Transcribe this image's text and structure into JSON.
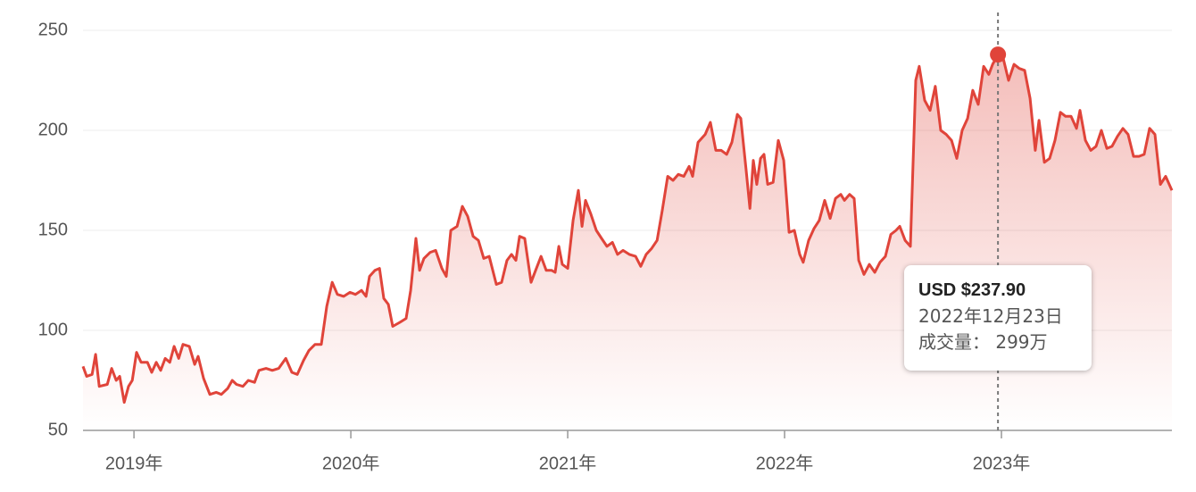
{
  "chart_data": {
    "type": "line",
    "color": "#e0443a",
    "grid": true,
    "x": [
      2018.765,
      2018.782,
      2018.807,
      2018.823,
      2018.84,
      2018.877,
      2018.897,
      2018.918,
      2018.934,
      2018.955,
      2018.975,
      2018.992,
      2019.012,
      2019.033,
      2019.062,
      2019.082,
      2019.103,
      2019.123,
      2019.144,
      2019.165,
      2019.185,
      2019.206,
      2019.226,
      2019.255,
      2019.28,
      2019.296,
      2019.321,
      2019.35,
      2019.379,
      2019.403,
      2019.432,
      2019.453,
      2019.473,
      2019.502,
      2019.527,
      2019.556,
      2019.576,
      2019.609,
      2019.638,
      2019.667,
      2019.7,
      2019.728,
      2019.753,
      2019.782,
      2019.807,
      2019.835,
      2019.864,
      2019.889,
      2019.914,
      2019.938,
      2019.967,
      2019.996,
      2020.021,
      2020.049,
      2020.07,
      2020.086,
      2020.111,
      2020.132,
      2020.152,
      2020.173,
      2020.193,
      2020.226,
      2020.255,
      2020.276,
      2020.3,
      2020.317,
      2020.337,
      2020.366,
      2020.391,
      2020.42,
      2020.44,
      2020.461,
      2020.49,
      2020.514,
      2020.539,
      2020.564,
      2020.588,
      2020.613,
      2020.638,
      2020.671,
      2020.695,
      2020.72,
      2020.741,
      2020.761,
      2020.778,
      2020.802,
      2020.831,
      2020.852,
      2020.877,
      2020.901,
      2020.926,
      2020.942,
      2020.959,
      2020.975,
      2021,
      2021.025,
      2021.049,
      2021.066,
      2021.082,
      2021.107,
      2021.132,
      2021.156,
      2021.181,
      2021.206,
      2021.23,
      2021.255,
      2021.284,
      2021.313,
      2021.337,
      2021.362,
      2021.387,
      2021.412,
      2021.436,
      2021.461,
      2021.486,
      2021.51,
      2021.535,
      2021.56,
      2021.576,
      2021.601,
      2021.634,
      2021.658,
      2021.683,
      2021.708,
      2021.733,
      2021.757,
      2021.782,
      2021.798,
      2021.823,
      2021.84,
      2021.856,
      2021.872,
      2021.889,
      2021.905,
      2021.922,
      2021.947,
      2021.971,
      2021.996,
      2022.021,
      2022.045,
      2022.07,
      2022.086,
      2022.111,
      2022.136,
      2022.16,
      2022.185,
      2022.21,
      2022.235,
      2022.259,
      2022.276,
      2022.3,
      2022.321,
      2022.342,
      2022.366,
      2022.391,
      2022.416,
      2022.44,
      2022.465,
      2022.49,
      2022.514,
      2022.531,
      2022.556,
      2022.58,
      2022.605,
      2022.621,
      2022.646,
      2022.671,
      2022.695,
      2022.72,
      2022.745,
      2022.77,
      2022.794,
      2022.819,
      2022.844,
      2022.868,
      2022.893,
      2022.918,
      2022.942,
      2022.959,
      2022.984,
      2023.008,
      2023.033,
      2023.058,
      2023.082,
      2023.107,
      2023.132,
      2023.156,
      2023.173,
      2023.198,
      2023.222,
      2023.247,
      2023.272,
      2023.296,
      2023.321,
      2023.346,
      2023.362,
      2023.387,
      2023.412,
      2023.436,
      2023.461,
      2023.486,
      2023.51,
      2023.535,
      2023.56,
      2023.584,
      2023.609,
      2023.634,
      2023.658,
      2023.683,
      2023.708,
      2023.733,
      2023.757,
      2023.786
    ],
    "values": [
      82,
      77,
      78,
      88,
      72,
      73,
      81,
      75,
      77,
      64,
      72,
      75,
      89,
      84,
      84,
      79,
      84,
      80,
      86,
      84,
      92,
      86,
      93,
      92,
      83,
      87,
      76,
      68,
      69,
      68,
      71,
      75,
      73,
      72,
      75,
      74,
      80,
      81,
      80,
      81,
      86,
      79,
      78,
      85,
      90,
      93,
      93,
      112,
      124,
      118,
      117,
      119,
      118,
      120,
      117,
      127,
      130,
      131,
      116,
      113,
      102,
      104,
      106,
      120,
      146,
      130,
      136,
      139,
      140,
      131,
      127,
      150,
      152,
      162,
      157,
      147,
      145,
      136,
      137,
      123,
      124,
      135,
      138,
      135,
      147,
      146,
      124,
      130,
      137,
      130,
      130,
      129,
      142,
      133,
      131,
      155,
      170,
      152,
      165,
      158,
      150,
      146,
      142,
      144,
      138,
      140,
      138,
      137,
      132,
      138,
      141,
      145,
      160,
      177,
      175,
      178,
      177,
      182,
      177,
      194,
      198,
      204,
      190,
      190,
      188,
      194,
      208,
      206,
      180,
      161,
      185,
      173,
      186,
      188,
      173,
      174,
      195,
      185,
      149,
      150,
      138,
      134,
      145,
      151,
      155,
      165,
      156,
      166,
      168,
      165,
      168,
      166,
      135,
      128,
      133,
      129,
      134,
      137,
      148,
      150,
      152,
      145,
      142,
      225,
      232,
      215,
      210,
      222,
      200,
      198,
      195,
      186,
      200,
      206,
      220,
      213,
      232,
      228,
      233,
      237.9,
      236,
      225,
      233,
      231,
      230,
      216,
      190,
      205,
      184,
      186,
      195,
      209,
      207,
      207,
      201,
      210,
      195,
      190,
      192,
      200,
      191,
      192,
      197,
      201,
      198,
      187,
      187,
      188,
      201,
      198,
      173,
      177,
      170
    ],
    "xlim": [
      2018.765,
      2023.786
    ],
    "xticks": [
      {
        "value": 2019,
        "label": "2019年"
      },
      {
        "value": 2020,
        "label": "2020年"
      },
      {
        "value": 2021,
        "label": "2021年"
      },
      {
        "value": 2022,
        "label": "2022年"
      },
      {
        "value": 2023,
        "label": "2023年"
      }
    ],
    "ylim": [
      50,
      250
    ],
    "yticks": [
      50,
      100,
      150,
      200,
      250
    ],
    "tooltip": {
      "x": 2022.984,
      "value": 237.9,
      "value_label": "USD $237.90",
      "date": "2022年12月23日",
      "volume_label": "成交量：",
      "volume": "299万"
    }
  }
}
